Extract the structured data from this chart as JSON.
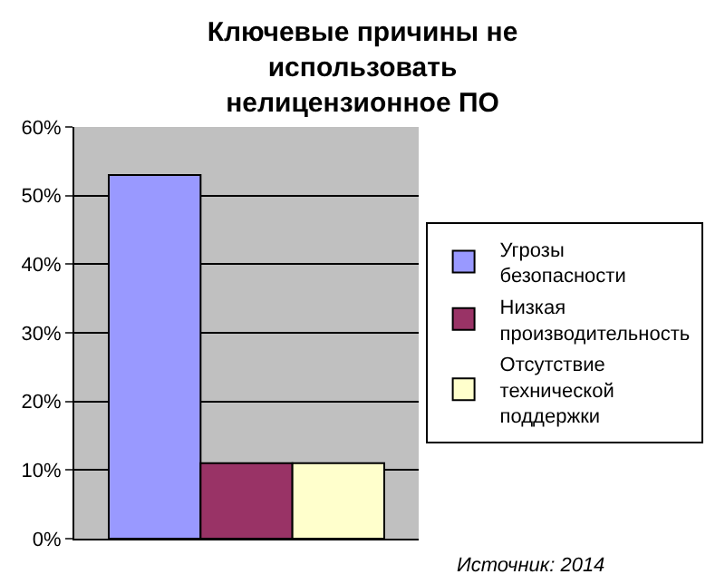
{
  "chart_data": {
    "type": "bar",
    "title": "Ключевые причины не использовать нелицензионное ПО",
    "categories": [
      null
    ],
    "series": [
      {
        "name": "Угрозы безопасности",
        "color": "#9999ff",
        "values": [
          53
        ]
      },
      {
        "name": "Низкая производительность",
        "color": "#993366",
        "values": [
          11
        ]
      },
      {
        "name": "Отсутствие технической поддержки",
        "color": "#ffffcc",
        "values": [
          11
        ]
      }
    ],
    "ylim": [
      0,
      60
    ],
    "yticks": [
      {
        "value": 0,
        "label": "0%"
      },
      {
        "value": 10,
        "label": "10%"
      },
      {
        "value": 20,
        "label": "20%"
      },
      {
        "value": 30,
        "label": "30%"
      },
      {
        "value": 40,
        "label": "40%"
      },
      {
        "value": 50,
        "label": "50%"
      },
      {
        "value": 60,
        "label": "60%"
      }
    ],
    "grid": "y",
    "legend": "right",
    "annotations": [
      "Источник: 2014"
    ]
  }
}
